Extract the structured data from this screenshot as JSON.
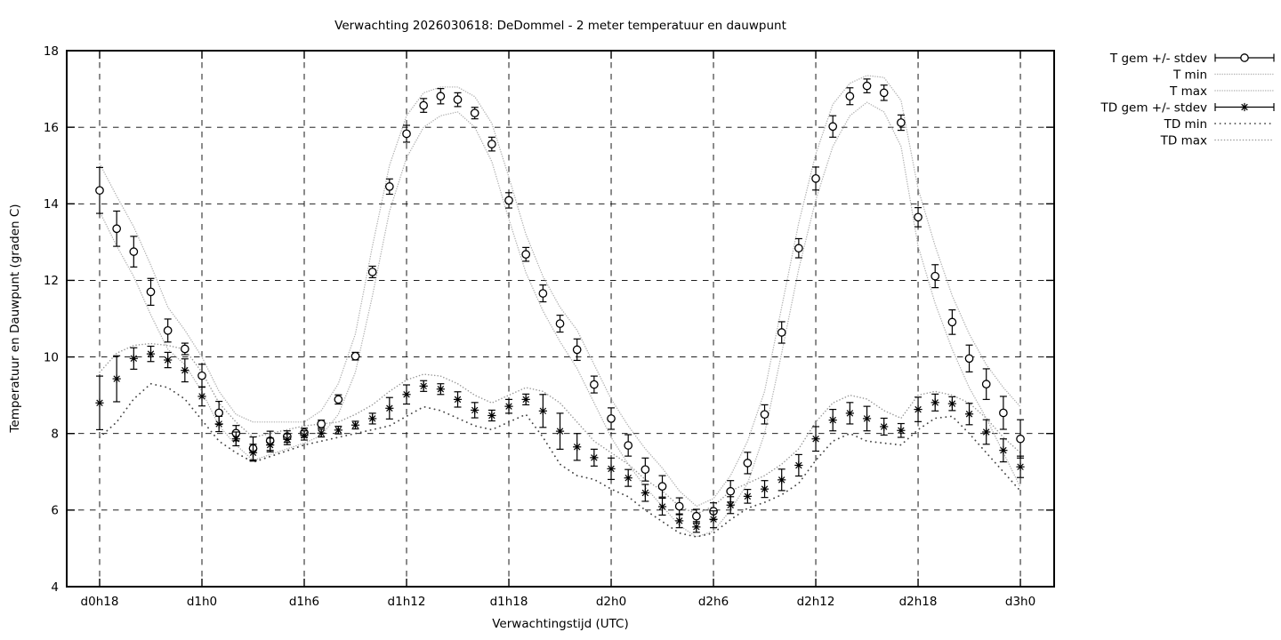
{
  "title": "Verwachting 2026030618: DeDommel - 2 meter temperatuur en dauwpunt",
  "axes": {
    "ylabel": "Temperatuur en Dauwpunt (graden C)",
    "xlabel": "Verwachtingstijd (UTC)",
    "yticks": [
      4,
      6,
      8,
      10,
      12,
      14,
      16,
      18
    ],
    "xtick_labels": [
      "d0h18",
      "d1h0",
      "d1h6",
      "d1h12",
      "d1h18",
      "d2h0",
      "d2h6",
      "d2h12",
      "d2h18",
      "d3h0"
    ]
  },
  "legend": {
    "entries": [
      {
        "label": "T gem +/- stdev",
        "style": "errorbar-circle"
      },
      {
        "label": "T min",
        "style": "dotted-fine"
      },
      {
        "label": "T max",
        "style": "dotted-fine"
      },
      {
        "label": "TD gem +/- stdev",
        "style": "errorbar-asterisk"
      },
      {
        "label": "TD min",
        "style": "dotted-sparse"
      },
      {
        "label": "TD max",
        "style": "dotted-medium"
      }
    ]
  },
  "style_colors": {
    "foreground": "#000000",
    "background": "#ffffff",
    "t_minmax_dots": "#b3b3b3",
    "td_max_dots": "#999999",
    "td_min_dots": "#444444"
  },
  "chart_data": {
    "type": "line",
    "title": "Verwachting 2026030618: DeDommel - 2 meter temperatuur en dauwpunt",
    "xlabel": "Verwachtingstijd (UTC)",
    "ylabel": "Temperatuur en Dauwpunt (graden C)",
    "grid": true,
    "legend_position": "outside-top-right",
    "ylim": [
      4,
      18
    ],
    "yticks": [
      4,
      6,
      8,
      10,
      12,
      14,
      16,
      18
    ],
    "xlim_hours": [
      16.07,
      73.98
    ],
    "x_tick_hours": [
      18,
      24,
      30,
      36,
      42,
      48,
      54,
      60,
      66,
      72
    ],
    "x_tick_labels": [
      "d0h18",
      "d1h0",
      "d1h6",
      "d1h12",
      "d1h18",
      "d2h0",
      "d2h6",
      "d2h12",
      "d2h18",
      "d3h0"
    ],
    "x_hours": [
      18,
      19,
      20,
      21,
      22,
      23,
      24,
      25,
      26,
      27,
      28,
      29,
      30,
      31,
      32,
      33,
      34,
      35,
      36,
      37,
      38,
      39,
      40,
      41,
      42,
      43,
      44,
      45,
      46,
      47,
      48,
      49,
      50,
      51,
      52,
      53,
      54,
      55,
      56,
      57,
      58,
      59,
      60,
      61,
      62,
      63,
      64,
      65,
      66,
      67,
      68,
      69,
      70,
      71,
      72
    ],
    "series": [
      {
        "name": "T gem +/- stdev",
        "style": "errorbar-circle",
        "values": [
          14.35,
          13.35,
          12.75,
          11.7,
          10.69,
          10.21,
          9.51,
          8.54,
          8.01,
          7.61,
          7.81,
          7.92,
          8.02,
          8.25,
          8.89,
          10.02,
          12.22,
          14.45,
          15.83,
          16.57,
          16.81,
          16.72,
          16.37,
          15.56,
          14.09,
          12.68,
          11.66,
          10.87,
          10.19,
          9.28,
          8.39,
          7.69,
          7.06,
          6.62,
          6.1,
          5.84,
          5.97,
          6.49,
          7.23,
          8.5,
          10.64,
          12.84,
          14.66,
          16.02,
          16.81,
          17.08,
          16.9,
          16.12,
          13.65,
          12.11,
          10.91,
          9.96,
          9.29,
          8.54,
          7.86
        ],
        "stdev": [
          0.6,
          0.46,
          0.4,
          0.35,
          0.3,
          0.15,
          0.3,
          0.3,
          0.2,
          0.3,
          0.25,
          0.15,
          0.12,
          0.1,
          0.12,
          0.1,
          0.15,
          0.2,
          0.22,
          0.18,
          0.2,
          0.18,
          0.15,
          0.18,
          0.2,
          0.18,
          0.22,
          0.22,
          0.28,
          0.22,
          0.28,
          0.28,
          0.3,
          0.28,
          0.22,
          0.18,
          0.22,
          0.28,
          0.28,
          0.25,
          0.28,
          0.25,
          0.3,
          0.28,
          0.22,
          0.18,
          0.2,
          0.2,
          0.25,
          0.3,
          0.32,
          0.35,
          0.4,
          0.43,
          0.5
        ]
      },
      {
        "name": "T min",
        "style": "dotted-fine",
        "values": [
          13.8,
          12.9,
          12.1,
          11.1,
          10.2,
          9.8,
          9.1,
          8.2,
          7.7,
          7.3,
          7.45,
          7.6,
          7.75,
          7.95,
          8.5,
          9.6,
          11.6,
          13.8,
          15.2,
          16.0,
          16.3,
          16.4,
          16.0,
          15.1,
          13.6,
          12.2,
          11.2,
          10.4,
          9.7,
          8.8,
          7.9,
          7.2,
          6.6,
          6.1,
          5.6,
          5.3,
          5.45,
          6.0,
          6.7,
          8.0,
          10.1,
          12.3,
          14.1,
          15.5,
          16.3,
          16.65,
          16.4,
          15.5,
          12.9,
          11.4,
          10.2,
          9.2,
          8.4,
          7.5,
          6.6
        ]
      },
      {
        "name": "T max",
        "style": "dotted-fine",
        "values": [
          15.05,
          14.2,
          13.4,
          12.4,
          11.3,
          10.7,
          10.0,
          9.1,
          8.5,
          8.3,
          8.3,
          8.3,
          8.3,
          8.6,
          9.3,
          10.6,
          12.9,
          15.0,
          16.3,
          16.9,
          17.05,
          17.05,
          16.8,
          16.1,
          14.7,
          13.2,
          12.1,
          11.3,
          10.7,
          9.8,
          8.9,
          8.2,
          7.6,
          7.1,
          6.5,
          6.1,
          6.3,
          6.9,
          7.8,
          9.1,
          11.3,
          13.5,
          15.3,
          16.6,
          17.15,
          17.35,
          17.3,
          16.7,
          14.4,
          12.9,
          11.6,
          10.6,
          9.8,
          9.2,
          8.7
        ]
      },
      {
        "name": "TD gem +/- stdev",
        "style": "errorbar-asterisk",
        "values": [
          8.8,
          9.43,
          9.96,
          10.08,
          9.92,
          9.65,
          8.97,
          8.25,
          7.86,
          7.5,
          7.7,
          7.85,
          7.95,
          8.01,
          8.09,
          8.22,
          8.39,
          8.66,
          9.02,
          9.24,
          9.16,
          8.89,
          8.61,
          8.47,
          8.71,
          8.89,
          8.59,
          8.06,
          7.65,
          7.37,
          7.08,
          6.84,
          6.45,
          6.09,
          5.72,
          5.56,
          5.76,
          6.13,
          6.36,
          6.55,
          6.79,
          7.17,
          7.86,
          8.35,
          8.53,
          8.39,
          8.18,
          8.08,
          8.63,
          8.81,
          8.78,
          8.51,
          8.04,
          7.56,
          7.13
        ],
        "stdev": [
          0.7,
          0.6,
          0.28,
          0.2,
          0.2,
          0.3,
          0.25,
          0.2,
          0.18,
          0.22,
          0.18,
          0.14,
          0.12,
          0.1,
          0.1,
          0.1,
          0.14,
          0.28,
          0.25,
          0.14,
          0.14,
          0.2,
          0.2,
          0.14,
          0.18,
          0.14,
          0.43,
          0.47,
          0.35,
          0.22,
          0.28,
          0.22,
          0.22,
          0.22,
          0.18,
          0.14,
          0.22,
          0.22,
          0.18,
          0.22,
          0.28,
          0.28,
          0.32,
          0.28,
          0.28,
          0.32,
          0.22,
          0.18,
          0.32,
          0.22,
          0.18,
          0.28,
          0.32,
          0.3,
          0.28
        ]
      },
      {
        "name": "TD min",
        "style": "dotted-sparse",
        "values": [
          7.9,
          8.3,
          8.9,
          9.3,
          9.2,
          8.9,
          8.35,
          7.8,
          7.5,
          7.25,
          7.4,
          7.55,
          7.7,
          7.8,
          7.9,
          8.0,
          8.1,
          8.2,
          8.45,
          8.7,
          8.6,
          8.4,
          8.2,
          8.1,
          8.3,
          8.5,
          7.9,
          7.2,
          6.9,
          6.8,
          6.55,
          6.35,
          6.0,
          5.7,
          5.4,
          5.3,
          5.4,
          5.75,
          6.05,
          6.2,
          6.4,
          6.7,
          7.3,
          7.8,
          8.0,
          7.8,
          7.75,
          7.7,
          8.1,
          8.4,
          8.45,
          8.0,
          7.5,
          7.0,
          6.5
        ]
      },
      {
        "name": "TD max",
        "style": "dotted-medium",
        "values": [
          9.6,
          10.1,
          10.3,
          10.35,
          10.3,
          10.2,
          9.6,
          8.8,
          8.3,
          7.9,
          8.0,
          8.1,
          8.2,
          8.25,
          8.3,
          8.5,
          8.75,
          9.1,
          9.4,
          9.55,
          9.5,
          9.3,
          9.0,
          8.8,
          9.0,
          9.2,
          9.1,
          8.8,
          8.3,
          7.8,
          7.5,
          7.2,
          6.8,
          6.5,
          6.1,
          5.9,
          6.1,
          6.5,
          6.7,
          6.9,
          7.2,
          7.6,
          8.3,
          8.8,
          9.0,
          8.9,
          8.6,
          8.4,
          9.0,
          9.1,
          9.0,
          8.8,
          8.4,
          7.9,
          7.5
        ]
      }
    ]
  }
}
